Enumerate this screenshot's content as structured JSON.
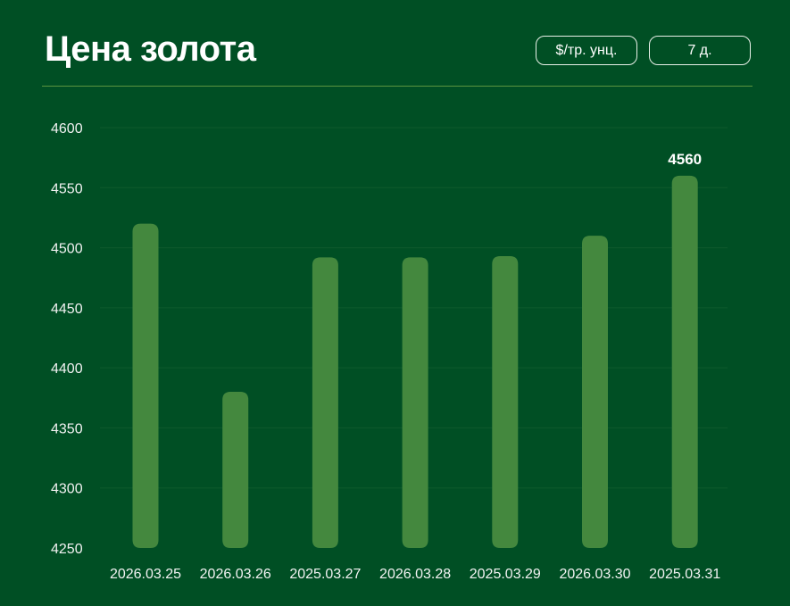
{
  "header": {
    "title": "Цена золота",
    "unit_button": "$/тр. унц.",
    "period_button": "7 д."
  },
  "colors": {
    "background": "#004f24",
    "bar": "#44883e",
    "grid": "#0e5a2c",
    "divider": "#5b9440"
  },
  "chart_data": {
    "type": "bar",
    "title": "Цена золота",
    "categories": [
      "2026.03.25",
      "2026.03.26",
      "2025.03.27",
      "2026.03.28",
      "2025.03.29",
      "2026.03.30",
      "2025.03.31"
    ],
    "values": [
      4520,
      4380,
      4492,
      4492,
      4493,
      4510,
      4560
    ],
    "ylim": [
      4250,
      4600
    ],
    "yticks": [
      4250,
      4300,
      4350,
      4400,
      4450,
      4500,
      4550,
      4600
    ],
    "grid": true,
    "data_labels": [
      {
        "index": 6,
        "text": "4560"
      }
    ]
  }
}
